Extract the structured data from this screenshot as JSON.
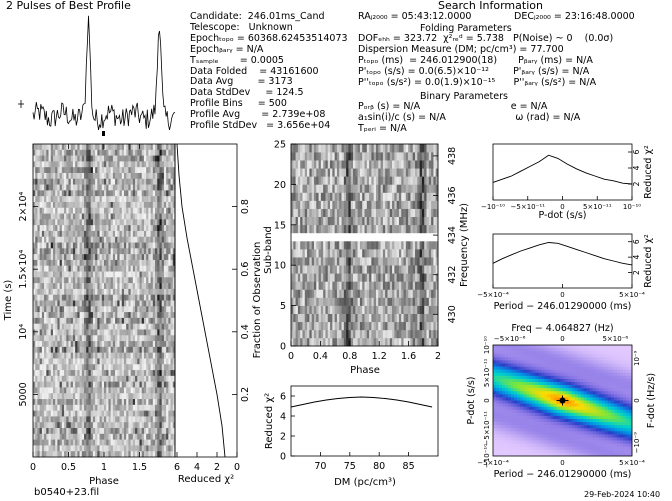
{
  "chart_data": [
    {
      "type": "line",
      "title": "2 Pulses of Best Profile",
      "phase_bins": 64,
      "peak_phase": 0.78,
      "noise": 0.12
    },
    {
      "type": "heatmap",
      "xlabel": "Phase",
      "ylabel": "Time (s)",
      "xlim": [
        0,
        2
      ],
      "ylim": [
        0,
        25000
      ],
      "x_ticks": [
        "0",
        "0.5",
        "1",
        "1.5"
      ],
      "y_ticks": [
        {
          "value": 5000,
          "label": "5000"
        },
        {
          "value": 10000,
          "label": "10⁴"
        },
        {
          "value": 15000,
          "label": "1.5×10⁴"
        },
        {
          "value": 20000,
          "label": "2×10⁴"
        }
      ]
    },
    {
      "type": "line",
      "xlabel": "Reduced χ²",
      "ylabel": "Fraction of Observation",
      "x_ticks": [
        "6",
        "4",
        "2",
        "0"
      ],
      "y_ticks": [
        "0.2",
        "0.4",
        "0.6",
        "0.8"
      ],
      "curve": [
        [
          0,
          1.2
        ],
        [
          0.1,
          1.5
        ],
        [
          0.2,
          2.0
        ],
        [
          0.3,
          2.6
        ],
        [
          0.4,
          3.2
        ],
        [
          0.5,
          3.8
        ],
        [
          0.6,
          4.4
        ],
        [
          0.7,
          5.0
        ],
        [
          0.8,
          5.5
        ],
        [
          0.9,
          5.8
        ],
        [
          1.0,
          6.0
        ]
      ]
    },
    {
      "type": "heatmap",
      "xlabel": "Phase",
      "ylabel": "Sub-band",
      "y2label": "Frequency (MHz)",
      "xlim": [
        0,
        2
      ],
      "ylim": [
        0,
        25
      ],
      "x_ticks": [
        "0",
        "0.4",
        "0.8",
        "1.2",
        "1.6",
        "2"
      ],
      "y_ticks": [
        "0",
        "5",
        "10",
        "15",
        "20",
        "25"
      ],
      "y2_ticks": [
        "430",
        "432",
        "434",
        "436",
        "438"
      ],
      "masked_bands": [
        13
      ]
    },
    {
      "type": "line",
      "xlabel": "DM (pc/cm³)",
      "ylabel": "Reduced χ²",
      "xlim": [
        65,
        90
      ],
      "ylim": [
        0,
        7
      ],
      "x_ticks": [
        "70",
        "75",
        "80",
        "85"
      ],
      "y_ticks": [
        "0",
        "2",
        "4",
        "6"
      ],
      "x": [
        65,
        67,
        69,
        71,
        73,
        75,
        77,
        79,
        81,
        83,
        85,
        87,
        89
      ],
      "y": [
        4.9,
        5.15,
        5.4,
        5.6,
        5.75,
        5.85,
        5.9,
        5.85,
        5.75,
        5.6,
        5.4,
        5.15,
        4.9
      ]
    },
    {
      "type": "line",
      "xlabel": "P-dot (s/s)",
      "ylabel": "Reduced χ²",
      "x_ticks": [
        "−10⁻¹⁰",
        "−5×10⁻¹¹",
        "0",
        "5×10⁻¹¹",
        "10⁻¹⁰"
      ],
      "y_ticks": [
        "2",
        "4",
        "6"
      ],
      "ylim": [
        0,
        7
      ],
      "y": [
        2.2,
        2.6,
        3.0,
        3.6,
        4.2,
        4.8,
        5.6,
        5.2,
        4.5,
        3.9,
        3.4,
        3.0,
        2.6,
        2.4,
        2.1,
        2.0
      ]
    },
    {
      "type": "line",
      "xlabel": "Period − 246.01290000 (ms)",
      "ylabel": "Reduced χ²",
      "x_ticks": [
        "−5×10⁻⁴",
        "0",
        "5×10⁻⁴"
      ],
      "y_ticks": [
        "2",
        "4",
        "6"
      ],
      "ylim": [
        0,
        7
      ],
      "y": [
        3.2,
        3.8,
        4.3,
        4.8,
        5.2,
        5.6,
        5.9,
        5.8,
        5.4,
        5.0,
        4.6,
        4.2,
        3.8,
        3.5,
        3.2,
        3.0
      ]
    },
    {
      "type": "heatmap",
      "title": "Freq − 4.064827 (Hz)",
      "xlabel": "Period − 246.01290000 (ms)",
      "ylabel": "P-dot (s/s)",
      "y2label": "F-dot (Hz/s)",
      "top_ticks": [
        "−5×10⁻⁶",
        "0",
        "5×10⁻⁶"
      ],
      "x_ticks": [
        "−5×10⁻⁴",
        "0",
        "5×10⁻⁴"
      ],
      "y_ticks": [
        "−10⁻¹⁰",
        "−5×10⁻¹¹",
        "0",
        "5×10⁻¹¹",
        "10⁻¹⁰"
      ],
      "y2_ticks": [
        "10⁻⁹",
        "0",
        "−10⁻⁹"
      ]
    }
  ],
  "info_left": [
    "Candidate:  246.01ms_Cand",
    "Telescope:   Unknown",
    "Epochₜₒₚₒ = 60368.62453514073",
    "Epochᵦₐᵣᵧ = N/A",
    "Tₛₐₘₚₗₑ       = 0.0005",
    "Data Folded    = 43161600",
    "Data Avg        = 3173",
    "Data StdDev     = 124.5",
    "Profile Bins     = 500",
    "Profile Avg       = 2.739e+08",
    "Profile StdDev   = 3.656e+04"
  ],
  "search_title": "Search Information",
  "search_line1_left": "RAⱼ₂₀₀₀ = 05:43:12.0000",
  "search_line1_right": "DECⱼ₂₀₀₀ = 23:16:48.0000",
  "folding_title": "Folding Parameters",
  "folding_lines": [
    "DOFₑₕₕ = 323.72  χ²ᵣₑᵈ = 5.738   P(Noise) ~ 0    (0.0σ)",
    "Dispersion Measure (DM; pc/cm³) = 77.700",
    "Pₜₒₚₒ (ms)  = 246.012900(18)       Pᵦₐᵣᵧ (ms) = N/A",
    "P'ₜₒₚₒ (s/s) = 0.0(6.5)×10⁻¹²        P'ᵦₐᵣᵧ (s/s) = N/A",
    "P''ₜₒₚₒ (s/s²) = 0.0(1.9)×10⁻¹⁵      P''ᵦₐᵣᵧ (s/s²) = N/A"
  ],
  "binary_title": "Binary Parameters",
  "binary_lines": [
    "Pₒᵣᵦ (s) = N/A                              e = N/A",
    "a₁sin(i)/c (s) = N/A                       ω (rad) = N/A",
    "Tₚₑᵣᵢ = N/A"
  ],
  "footer_left": "b0540+23.fil",
  "footer_right": "29-Feb-2024 10:40",
  "colors": {
    "ink": "#000000",
    "grid_light": "#f2f2f2",
    "grid_dark": "#111111"
  }
}
